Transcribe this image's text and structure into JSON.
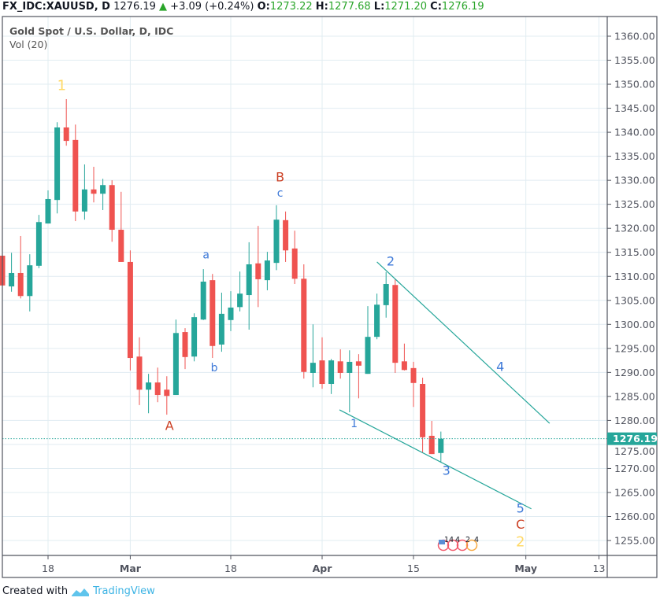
{
  "header": {
    "symbol": "FX_IDC:XAUUSD, D",
    "last": "1276.19",
    "change": "+3.09 (+0.24%)",
    "o_label": "O:",
    "o": "1273.22",
    "h_label": "H:",
    "h": "1277.68",
    "l_label": "L:",
    "l": "1271.20",
    "c_label": "C:",
    "c": "1276.19"
  },
  "legend": {
    "title": "Gold Spot / U.S. Dollar, D, IDC",
    "volume": "Vol (20)"
  },
  "footer": {
    "created_with": "Created with",
    "brand": "TradingView"
  },
  "colors": {
    "up": "#26a69a",
    "down": "#ef5350",
    "grid": "#e1ecf2",
    "axis": "#50535e",
    "wave_blue": "#3c78d8",
    "wave_red": "#cc4125",
    "wave_yellow": "#ffd966",
    "trendline": "#26a69a"
  },
  "chart_data": {
    "type": "candlestick",
    "title": "Gold Spot / U.S. Dollar, D, IDC",
    "ylim": [
      1250.5,
      1363.9
    ],
    "y_ticks": [
      1255,
      1260,
      1265,
      1270,
      1275,
      1280,
      1285,
      1290,
      1295,
      1300,
      1305,
      1310,
      1315,
      1320,
      1325,
      1330,
      1335,
      1340,
      1345,
      1350,
      1355,
      1360
    ],
    "x_ticks": [
      {
        "label": "18",
        "index": 5
      },
      {
        "label": "Mar",
        "index": 14
      },
      {
        "label": "18",
        "index": 25
      },
      {
        "label": "Apr",
        "index": 35
      },
      {
        "label": "15",
        "index": 45
      },
      {
        "label": "May",
        "index": 57.3
      },
      {
        "label": "13",
        "index": 65.3
      }
    ],
    "last_price": "1276.19",
    "last_price_value": 1276.19,
    "ohlc": [
      [
        1314.3,
        1314.8,
        1307.7,
        1308.1
      ],
      [
        1307.9,
        1314.9,
        1306.8,
        1310.7
      ],
      [
        1310.7,
        1318.4,
        1305.4,
        1305.9
      ],
      [
        1305.9,
        1314.6,
        1302.7,
        1312.3
      ],
      [
        1312.2,
        1322.8,
        1311.7,
        1321.3
      ],
      [
        1321.0,
        1327.9,
        1321.0,
        1326.1
      ],
      [
        1325.9,
        1342.1,
        1323.1,
        1341.0
      ],
      [
        1341.0,
        1346.9,
        1337.2,
        1338.2
      ],
      [
        1338.4,
        1341.6,
        1321.5,
        1323.5
      ],
      [
        1323.5,
        1333.3,
        1321.8,
        1328.1
      ],
      [
        1328.1,
        1332.8,
        1325.4,
        1327.2
      ],
      [
        1327.2,
        1330.3,
        1323.8,
        1329.0
      ],
      [
        1329.0,
        1330.0,
        1317.2,
        1319.7
      ],
      [
        1319.7,
        1327.6,
        1313.0,
        1313.0
      ],
      [
        1313.0,
        1315.4,
        1290.4,
        1293.0
      ],
      [
        1293.3,
        1297.3,
        1283.2,
        1286.4
      ],
      [
        1286.4,
        1289.7,
        1281.5,
        1287.9
      ],
      [
        1287.9,
        1291.0,
        1283.8,
        1285.3
      ],
      [
        1286.4,
        1289.2,
        1281.2,
        1285.1
      ],
      [
        1285.3,
        1301.0,
        1285.3,
        1298.2
      ],
      [
        1298.4,
        1299.2,
        1290.7,
        1293.2
      ],
      [
        1293.3,
        1302.3,
        1292.3,
        1301.5
      ],
      [
        1301.0,
        1311.5,
        1300.9,
        1308.9
      ],
      [
        1309.2,
        1310.5,
        1293.0,
        1295.5
      ],
      [
        1295.8,
        1306.6,
        1294.3,
        1302.2
      ],
      [
        1300.9,
        1306.9,
        1298.6,
        1303.5
      ],
      [
        1303.6,
        1311.0,
        1302.7,
        1306.4
      ],
      [
        1306.1,
        1317.1,
        1298.9,
        1312.5
      ],
      [
        1312.7,
        1320.5,
        1303.6,
        1309.4
      ],
      [
        1309.2,
        1315.1,
        1307.1,
        1313.3
      ],
      [
        1312.8,
        1324.8,
        1311.3,
        1321.8
      ],
      [
        1321.7,
        1323.5,
        1313.0,
        1315.4
      ],
      [
        1315.8,
        1319.5,
        1308.4,
        1309.5
      ],
      [
        1309.5,
        1312.5,
        1288.7,
        1290.1
      ],
      [
        1289.9,
        1300.0,
        1286.9,
        1292.0
      ],
      [
        1292.5,
        1297.3,
        1286.6,
        1287.6
      ],
      [
        1287.6,
        1292.8,
        1285.5,
        1292.5
      ],
      [
        1292.3,
        1294.8,
        1288.7,
        1289.9
      ],
      [
        1289.9,
        1294.6,
        1281.7,
        1292.2
      ],
      [
        1292.3,
        1293.8,
        1284.6,
        1291.4
      ],
      [
        1289.7,
        1303.8,
        1289.7,
        1297.4
      ],
      [
        1297.4,
        1306.4,
        1296.9,
        1304.1
      ],
      [
        1304.0,
        1310.9,
        1301.4,
        1308.4
      ],
      [
        1308.2,
        1309.4,
        1289.9,
        1292.0
      ],
      [
        1292.3,
        1296.0,
        1290.4,
        1290.5
      ],
      [
        1290.9,
        1292.2,
        1282.8,
        1287.8
      ],
      [
        1287.6,
        1288.9,
        1273.2,
        1276.5
      ],
      [
        1276.8,
        1279.9,
        1273.0,
        1273.0
      ],
      [
        1273.22,
        1277.68,
        1271.2,
        1276.19
      ]
    ],
    "trendlines": [
      {
        "name": "upper",
        "from": {
          "index": 41.0,
          "price": 1313.0
        },
        "to": {
          "index": 59.9,
          "price": 1279.4
        }
      },
      {
        "name": "lower",
        "from": {
          "index": 36.9,
          "price": 1282.2
        },
        "to": {
          "index": 57.9,
          "price": 1261.6
        }
      }
    ],
    "annotations": [
      {
        "text": "1",
        "index": 6.5,
        "price": 1349.8,
        "color": "yellow",
        "size": "large"
      },
      {
        "text": "A",
        "index": 18.3,
        "price": 1278.9,
        "color": "red",
        "size": "medium"
      },
      {
        "text": "a",
        "index": 22.3,
        "price": 1314.5,
        "color": "blue",
        "size": "small"
      },
      {
        "text": "b",
        "index": 23.2,
        "price": 1291.0,
        "color": "blue",
        "size": "small"
      },
      {
        "text": "B",
        "index": 30.4,
        "price": 1330.7,
        "color": "red",
        "size": "medium"
      },
      {
        "text": "c",
        "index": 30.4,
        "price": 1327.4,
        "color": "blue",
        "size": "small"
      },
      {
        "text": "1",
        "index": 38.5,
        "price": 1279.4,
        "color": "blue",
        "size": "small"
      },
      {
        "text": "2",
        "index": 42.5,
        "price": 1313.2,
        "color": "blue",
        "size": "medium"
      },
      {
        "text": "3",
        "index": 48.6,
        "price": 1269.6,
        "color": "blue",
        "size": "medium"
      },
      {
        "text": "4",
        "index": 54.5,
        "price": 1291.2,
        "color": "blue",
        "size": "medium"
      },
      {
        "text": "5",
        "index": 56.7,
        "price": 1260.7,
        "color": "blue",
        "size": "medium"
      },
      {
        "text": "C",
        "index": 56.7,
        "price": 1257.9,
        "color": "red",
        "size": "medium"
      },
      {
        "text": "2",
        "index": 56.7,
        "price": 1254.8,
        "color": "yellow",
        "size": "large"
      }
    ],
    "events": [
      "14",
      "4",
      "2",
      "4"
    ]
  }
}
